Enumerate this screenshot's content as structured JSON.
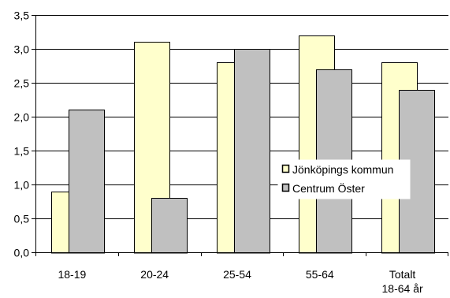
{
  "chart_data": {
    "type": "bar",
    "categories": [
      [
        "18-19"
      ],
      [
        "20-24"
      ],
      [
        "25-54"
      ],
      [
        "55-64"
      ],
      [
        "Totalt",
        "18-64 år"
      ]
    ],
    "series": [
      {
        "name": "Jönköpings kommun",
        "values": [
          0.9,
          3.1,
          2.8,
          3.2,
          2.8
        ],
        "color": "#ffffcc"
      },
      {
        "name": "Centrum Öster",
        "values": [
          2.1,
          0.8,
          3.0,
          2.7,
          2.4
        ],
        "color": "#c0c0c0"
      }
    ],
    "title": "",
    "xlabel": "",
    "ylabel": "",
    "ylim": [
      0,
      3.5
    ],
    "yticks": [
      "0,0",
      "0,5",
      "1,0",
      "1,5",
      "2,0",
      "2,5",
      "3,0",
      "3,5"
    ],
    "grid": true,
    "legend_position": "center-right"
  }
}
